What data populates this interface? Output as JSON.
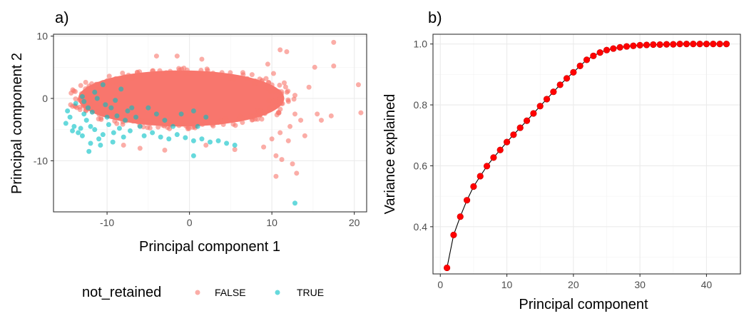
{
  "chart_data": [
    {
      "panel_label": "a)",
      "type": "scatter",
      "xlabel": "Principal component 1",
      "ylabel": "Principal component 2",
      "xlim": [
        -16.5,
        21.5
      ],
      "ylim": [
        -18.2,
        10.3
      ],
      "x_ticks": [
        -10,
        0,
        10,
        20
      ],
      "y_ticks": [
        -10,
        0,
        10
      ],
      "x_tick_labels": [
        "-10",
        "0",
        "10",
        "20"
      ],
      "y_tick_labels": [
        "-10",
        "0",
        "10"
      ],
      "grid": true,
      "legend": {
        "title": "not_retained",
        "position": "bottom",
        "entries": [
          {
            "label": "FALSE",
            "color": "#F8766D"
          },
          {
            "label": "TRUE",
            "color": "#00BFC4"
          }
        ]
      },
      "series": [
        {
          "name": "FALSE",
          "color": "#F8766D",
          "cloud_center": [
            -1,
            0
          ],
          "cloud_half_width": [
            12.5,
            4.5
          ],
          "points": [
            [
              17.5,
              9.0
            ],
            [
              11.8,
              7.5
            ],
            [
              15.2,
              5.0
            ],
            [
              17.5,
              5.2
            ],
            [
              20.5,
              2.2
            ],
            [
              14.5,
              1.8
            ],
            [
              12.8,
              -2.5
            ],
            [
              15.5,
              -2.5
            ],
            [
              17.2,
              -2.8
            ],
            [
              20.8,
              -2.3
            ],
            [
              9.0,
              -7.8
            ],
            [
              10.5,
              -9.2
            ],
            [
              11.2,
              -9.8
            ],
            [
              12.5,
              -10.5
            ],
            [
              10.5,
              -12.5
            ],
            [
              13.0,
              -12.0
            ],
            [
              11.0,
              7.8
            ],
            [
              10.2,
              4.0
            ],
            [
              11.5,
              2.5
            ],
            [
              12.2,
              -4.5
            ],
            [
              12.0,
              -6.8
            ],
            [
              10.0,
              -6.5
            ],
            [
              11.0,
              -5.5
            ],
            [
              13.5,
              -3.5
            ],
            [
              12.8,
              0.5
            ],
            [
              9.5,
              5.5
            ],
            [
              -4.0,
              6.8
            ],
            [
              -1.5,
              6.8
            ],
            [
              1.5,
              6.3
            ],
            [
              -6.0,
              -8.0
            ],
            [
              -3.0,
              -8.3
            ],
            [
              -8.0,
              -7.5
            ],
            [
              5.5,
              -8.2
            ],
            [
              2.0,
              -7.5
            ],
            [
              16.0,
              -3.5
            ],
            [
              14.0,
              -6.0
            ]
          ]
        },
        {
          "name": "TRUE",
          "color": "#00BFC4",
          "points": [
            [
              -15.0,
              -4.0
            ],
            [
              -14.5,
              -3.0
            ],
            [
              -14.8,
              -2.0
            ],
            [
              -14.0,
              -4.5
            ],
            [
              -13.5,
              -5.5
            ],
            [
              -13.0,
              -6.0
            ],
            [
              -12.8,
              -2.5
            ],
            [
              -12.5,
              -3.5
            ],
            [
              -12.3,
              -1.5
            ],
            [
              -12.0,
              -4.5
            ],
            [
              -11.5,
              -5.0
            ],
            [
              -11.8,
              -2.2
            ],
            [
              -11.0,
              -6.5
            ],
            [
              -10.5,
              -5.8
            ],
            [
              -10.0,
              -3.0
            ],
            [
              -9.8,
              -4.2
            ],
            [
              -9.5,
              -1.5
            ],
            [
              -9.2,
              -5.5
            ],
            [
              -8.8,
              -2.8
            ],
            [
              -8.5,
              -4.8
            ],
            [
              -8.0,
              -6.2
            ],
            [
              -7.8,
              -3.5
            ],
            [
              -7.5,
              -2.0
            ],
            [
              -7.2,
              -5.2
            ],
            [
              -7.0,
              -1.5
            ],
            [
              -13.8,
              -0.8
            ],
            [
              -12.8,
              -0.5
            ],
            [
              -11.2,
              0.0
            ],
            [
              -10.2,
              -1.0
            ],
            [
              -9.0,
              -0.3
            ],
            [
              -13.2,
              -4.8
            ],
            [
              -14.2,
              -5.2
            ],
            [
              -12.0,
              -7.2
            ],
            [
              -10.8,
              -7.5
            ],
            [
              -6.5,
              -3.0
            ],
            [
              -6.0,
              -4.5
            ],
            [
              -5.5,
              -6.0
            ],
            [
              -4.5,
              -5.5
            ],
            [
              -3.5,
              -6.2
            ],
            [
              -2.5,
              -6.5
            ],
            [
              -1.5,
              -5.8
            ],
            [
              -0.5,
              -6.3
            ],
            [
              0.5,
              -6.8
            ],
            [
              1.5,
              -6.5
            ],
            [
              2.5,
              -7.0
            ],
            [
              3.5,
              -6.8
            ],
            [
              4.5,
              -7.2
            ],
            [
              5.5,
              -7.5
            ],
            [
              -12.2,
              -8.5
            ],
            [
              -9.3,
              -7.0
            ],
            [
              -2.0,
              -4.5
            ],
            [
              -3.0,
              -3.5
            ],
            [
              -4.0,
              -2.5
            ],
            [
              -1.0,
              -2.5
            ],
            [
              0.5,
              -2.0
            ],
            [
              2.0,
              -3.0
            ],
            [
              0.5,
              -9.2
            ],
            [
              12.8,
              -16.8
            ],
            [
              -13.0,
              0.3
            ],
            [
              -11.5,
              1.0
            ],
            [
              -5.0,
              -1.5
            ],
            [
              1.0,
              -4.5
            ],
            [
              -8.3,
              1.5
            ],
            [
              -10.5,
              2.2
            ]
          ]
        }
      ]
    },
    {
      "panel_label": "b)",
      "type": "line",
      "xlabel": "Principal component",
      "ylabel": "Variance explained",
      "xlim": [
        -1.1,
        45.1
      ],
      "ylim": [
        0.245,
        1.032
      ],
      "x_ticks": [
        0,
        10,
        20,
        30,
        40
      ],
      "y_ticks": [
        0.4,
        0.6,
        0.8,
        1.0
      ],
      "x_tick_labels": [
        "0",
        "10",
        "20",
        "30",
        "40"
      ],
      "y_tick_labels": [
        "0.4",
        "0.6",
        "0.8",
        "1.0"
      ],
      "grid": true,
      "series": [
        {
          "name": "",
          "color": "#FF0000",
          "line_color": "#000000",
          "x": [
            1,
            2,
            3,
            4,
            5,
            6,
            7,
            8,
            9,
            10,
            11,
            12,
            13,
            14,
            15,
            16,
            17,
            18,
            19,
            20,
            21,
            22,
            23,
            24,
            25,
            26,
            27,
            28,
            29,
            30,
            31,
            32,
            33,
            34,
            35,
            36,
            37,
            38,
            39,
            40,
            41,
            42,
            43
          ],
          "y": [
            0.265,
            0.373,
            0.433,
            0.487,
            0.532,
            0.566,
            0.599,
            0.627,
            0.652,
            0.678,
            0.702,
            0.725,
            0.748,
            0.772,
            0.796,
            0.819,
            0.843,
            0.866,
            0.887,
            0.907,
            0.928,
            0.948,
            0.961,
            0.972,
            0.98,
            0.985,
            0.989,
            0.992,
            0.994,
            0.996,
            0.997,
            0.998,
            0.998,
            0.999,
            0.999,
            1.0,
            1.0,
            1.0,
            1.0,
            1.0,
            1.0,
            1.0,
            1.0
          ]
        }
      ]
    }
  ]
}
